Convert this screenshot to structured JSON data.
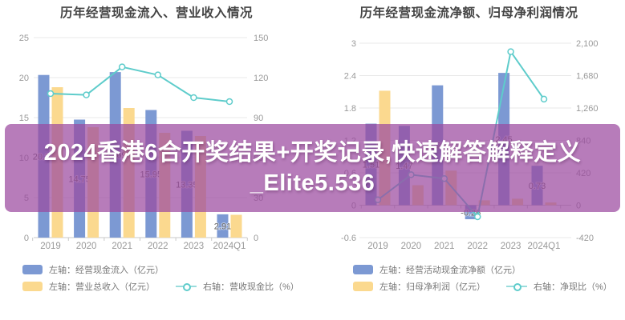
{
  "banner": {
    "line1": "2024香港6合开奖结果+开奖记录,快速解答解释定义",
    "line2": "_Elite5.536",
    "bg_rgba": "rgba(155,73,159,0.72)",
    "text_color": "#ffffff"
  },
  "colors": {
    "blue_bar": "#7c99d3",
    "yellow_bar": "#fbd98f",
    "teal_line": "#5ecccb",
    "grid": "#e8e8e8",
    "axis": "#c9c9c9",
    "tick_label": "#999999",
    "bar_label": "#666666",
    "title": "#444444",
    "legend_text": "#777777"
  },
  "chart_data": [
    {
      "type": "bar",
      "title": "历年经营现金流入、营业收入情况",
      "categories": [
        "2019",
        "2020",
        "2021",
        "2022",
        "2023",
        "2024Q1"
      ],
      "series": [
        {
          "name": "左轴：经营现金流入（亿元）",
          "kind": "bar",
          "axis": "left",
          "color": "#7c99d3",
          "values": [
            20.33,
            14.75,
            20.69,
            15.95,
            13.35,
            2.91
          ],
          "labels": [
            "20.33",
            "14.75",
            "20.69",
            "15.95",
            "13.35",
            "2.91"
          ]
        },
        {
          "name": "左轴：营业总收入（亿元）",
          "kind": "bar",
          "axis": "left",
          "color": "#fbd98f",
          "values": [
            18.8,
            13.8,
            16.2,
            13.1,
            12.7,
            2.85
          ]
        },
        {
          "name": "右轴：营收现金比（%）",
          "kind": "line",
          "axis": "right",
          "color": "#5ecccb",
          "values": [
            108,
            107,
            128,
            122,
            105,
            102
          ]
        }
      ],
      "left_axis": {
        "min": 0,
        "max": 25,
        "ticks": [
          {
            "v": 25,
            "label": "25"
          },
          {
            "v": 20,
            "label": "20"
          },
          {
            "v": 15,
            "label": "15"
          },
          {
            "v": 10,
            "label": "10"
          },
          {
            "v": 5,
            "label": "5"
          },
          {
            "v": 0,
            "label": "0"
          }
        ]
      },
      "right_axis": {
        "min": 0,
        "max": 150,
        "ticks": [
          {
            "v": 150,
            "label": "150"
          },
          {
            "v": 120,
            "label": "120"
          },
          {
            "v": 90,
            "label": "90"
          },
          {
            "v": 60,
            "label": "60"
          },
          {
            "v": 30,
            "label": "30"
          },
          {
            "v": 0,
            "label": "0"
          }
        ]
      },
      "grid": true,
      "legend_position": "bottom"
    },
    {
      "type": "bar",
      "title": "历年经营现金流净额、归母净利润情况",
      "categories": [
        "2019",
        "2020",
        "2021",
        "2022",
        "2023",
        "2024Q1"
      ],
      "series": [
        {
          "name": "左轴：经营活动现金流净额（亿元）",
          "kind": "bar",
          "axis": "left",
          "color": "#7c99d3",
          "values": [
            1.51,
            1.47,
            2.22,
            -0.26,
            2.45,
            0.73
          ],
          "labels": [
            "1.51",
            "1.47",
            "2.22",
            "-0.26",
            "2.45",
            "0.73"
          ]
        },
        {
          "name": "左轴：归母净利润（亿元）",
          "kind": "bar",
          "axis": "left",
          "color": "#fbd98f",
          "values": [
            2.12,
            0.37,
            0.64,
            0.09,
            0.12,
            0.05
          ]
        },
        {
          "name": "右轴：净现比（%）",
          "kind": "line",
          "axis": "right",
          "color": "#5ecccb",
          "values": [
            70,
            395,
            345,
            -150,
            1990,
            1375
          ]
        }
      ],
      "left_axis": {
        "min": -0.6,
        "max": 3,
        "ticks": [
          {
            "v": 3,
            "label": "3"
          },
          {
            "v": 2.4,
            "label": "2.4"
          },
          {
            "v": 1.8,
            "label": "1.8"
          },
          {
            "v": 1.2,
            "label": "1.2"
          },
          {
            "v": 0.6,
            "label": "0.6"
          },
          {
            "v": 0,
            "label": "0"
          },
          {
            "v": -0.6,
            "label": "-0.6"
          }
        ]
      },
      "right_axis": {
        "min": -420,
        "max": 2100,
        "ticks": [
          {
            "v": 2100,
            "label": "2,100"
          },
          {
            "v": 1680,
            "label": "1,680"
          },
          {
            "v": 1260,
            "label": "1,260"
          },
          {
            "v": 840,
            "label": "840"
          },
          {
            "v": 420,
            "label": "420"
          },
          {
            "v": 0,
            "label": "0"
          },
          {
            "v": -420,
            "label": "-420"
          }
        ]
      },
      "grid": true,
      "legend_position": "bottom"
    }
  ]
}
